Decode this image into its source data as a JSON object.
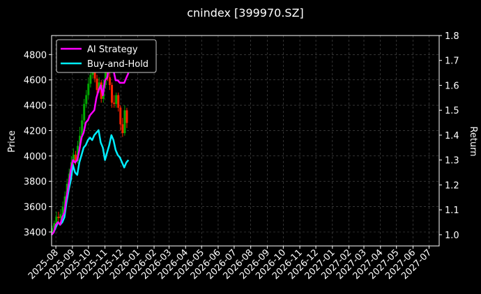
{
  "chart_data": {
    "type": "line",
    "title": "cnindex [399970.SZ]",
    "xlabel": "",
    "ylabel": "Price",
    "ylabel_right": "Return",
    "ylim": [
      3290,
      4950
    ],
    "ylim_right": [
      0.955,
      1.8
    ],
    "yticks": [
      "3400",
      "3600",
      "3800",
      "4000",
      "4200",
      "4400",
      "4600",
      "4800"
    ],
    "yticks_right": [
      "1.0",
      "1.1",
      "1.2",
      "1.3",
      "1.4",
      "1.5",
      "1.6",
      "1.7",
      "1.8"
    ],
    "xticks": [
      "2025-08",
      "2025-09",
      "2025-10",
      "2025-11",
      "2025-12",
      "2026-01",
      "2026-02",
      "2026-03",
      "2026-04",
      "2026-05",
      "2026-06",
      "2026-07",
      "2026-08",
      "2026-09",
      "2026-10",
      "2026-11",
      "2026-12",
      "2027-01",
      "2027-02",
      "2027-03",
      "2027-04",
      "2027-05",
      "2027-06",
      "2027-07"
    ],
    "grid": true,
    "legend_position": "top-left",
    "colors": {
      "background": "#000000",
      "ai_strategy": "#ff00ff",
      "buy_and_hold": "#00eeff",
      "up_candle": "#00aa00",
      "down_candle": "#ff2200",
      "grid": "#555555"
    },
    "series": [
      {
        "name": "AI Strategy",
        "axis": "right",
        "dates": [
          "2025-07-24",
          "2025-07-28",
          "2025-08-01",
          "2025-08-05",
          "2025-08-09",
          "2025-08-13",
          "2025-08-17",
          "2025-08-21",
          "2025-08-25",
          "2025-08-29",
          "2025-09-02",
          "2025-09-06",
          "2025-09-10",
          "2025-09-14",
          "2025-09-18",
          "2025-09-22",
          "2025-09-26",
          "2025-09-30",
          "2025-10-04",
          "2025-10-08",
          "2025-10-12",
          "2025-10-16",
          "2025-10-20",
          "2025-10-24",
          "2025-10-28",
          "2025-11-01",
          "2025-11-05",
          "2025-11-09",
          "2025-11-13",
          "2025-11-17",
          "2025-11-21",
          "2025-11-25",
          "2025-11-29",
          "2025-12-03",
          "2025-12-07",
          "2025-12-11",
          "2025-12-15"
        ],
        "values": [
          1.0,
          1.01,
          1.04,
          1.05,
          1.04,
          1.07,
          1.09,
          1.15,
          1.2,
          1.26,
          1.3,
          1.29,
          1.3,
          1.34,
          1.39,
          1.41,
          1.45,
          1.46,
          1.48,
          1.49,
          1.5,
          1.55,
          1.58,
          1.6,
          1.56,
          1.62,
          1.63,
          1.67,
          1.66,
          1.66,
          1.62,
          1.62,
          1.61,
          1.61,
          1.61,
          1.63,
          1.65
        ]
      },
      {
        "name": "Buy-and-Hold",
        "axis": "right",
        "dates": [
          "2025-07-24",
          "2025-07-28",
          "2025-08-01",
          "2025-08-05",
          "2025-08-09",
          "2025-08-13",
          "2025-08-17",
          "2025-08-21",
          "2025-08-25",
          "2025-08-29",
          "2025-09-02",
          "2025-09-06",
          "2025-09-10",
          "2025-09-14",
          "2025-09-18",
          "2025-09-22",
          "2025-09-26",
          "2025-09-30",
          "2025-10-04",
          "2025-10-08",
          "2025-10-12",
          "2025-10-16",
          "2025-10-20",
          "2025-10-24",
          "2025-10-28",
          "2025-11-01",
          "2025-11-05",
          "2025-11-09",
          "2025-11-13",
          "2025-11-17",
          "2025-11-21",
          "2025-11-25",
          "2025-11-29",
          "2025-12-03",
          "2025-12-07",
          "2025-12-11",
          "2025-12-15"
        ],
        "values": [
          1.0,
          1.01,
          1.03,
          1.05,
          1.04,
          1.05,
          1.07,
          1.13,
          1.18,
          1.22,
          1.28,
          1.25,
          1.24,
          1.29,
          1.32,
          1.35,
          1.36,
          1.38,
          1.39,
          1.38,
          1.4,
          1.41,
          1.42,
          1.37,
          1.35,
          1.3,
          1.33,
          1.36,
          1.4,
          1.38,
          1.34,
          1.32,
          1.31,
          1.29,
          1.27,
          1.29,
          1.3
        ]
      }
    ],
    "candles": {
      "name": "Price",
      "dates": [
        "2025-07-25",
        "2025-07-29",
        "2025-08-02",
        "2025-08-06",
        "2025-08-10",
        "2025-08-14",
        "2025-08-18",
        "2025-08-22",
        "2025-08-26",
        "2025-08-30",
        "2025-09-03",
        "2025-09-07",
        "2025-09-11",
        "2025-09-15",
        "2025-09-19",
        "2025-09-23",
        "2025-09-27",
        "2025-10-01",
        "2025-10-05",
        "2025-10-09",
        "2025-10-13",
        "2025-10-17",
        "2025-10-21",
        "2025-10-25",
        "2025-10-29",
        "2025-11-02",
        "2025-11-06",
        "2025-11-10",
        "2025-11-14",
        "2025-11-18",
        "2025-11-22",
        "2025-11-26",
        "2025-11-30",
        "2025-12-04",
        "2025-12-08",
        "2025-12-12"
      ],
      "open": [
        3400,
        3430,
        3470,
        3520,
        3510,
        3540,
        3600,
        3680,
        3780,
        3860,
        3950,
        4010,
        3960,
        4080,
        4160,
        4280,
        4410,
        4480,
        4570,
        4640,
        4700,
        4610,
        4520,
        4580,
        4450,
        4560,
        4700,
        4620,
        4560,
        4420,
        4410,
        4480,
        4380,
        4250,
        4180,
        4360
      ],
      "close": [
        3430,
        3470,
        3520,
        3510,
        3540,
        3600,
        3680,
        3780,
        3860,
        3950,
        4010,
        3960,
        4080,
        4160,
        4280,
        4410,
        4480,
        4570,
        4640,
        4700,
        4610,
        4520,
        4580,
        4450,
        4560,
        4700,
        4620,
        4560,
        4420,
        4410,
        4480,
        4380,
        4250,
        4180,
        4360,
        4260
      ],
      "high": [
        3450,
        3490,
        3560,
        3560,
        3580,
        3640,
        3720,
        3820,
        3900,
        4000,
        4060,
        4040,
        4120,
        4230,
        4330,
        4450,
        4520,
        4620,
        4700,
        4760,
        4720,
        4640,
        4620,
        4600,
        4600,
        4740,
        4720,
        4660,
        4580,
        4480,
        4500,
        4500,
        4400,
        4300,
        4400,
        4380
      ],
      "low": [
        3380,
        3410,
        3450,
        3480,
        3490,
        3520,
        3580,
        3660,
        3740,
        3830,
        3910,
        3930,
        3940,
        4050,
        4130,
        4250,
        4380,
        4450,
        4540,
        4610,
        4580,
        4490,
        4500,
        4420,
        4420,
        4530,
        4590,
        4520,
        4380,
        4380,
        4380,
        4350,
        4200,
        4150,
        4160,
        4220
      ]
    }
  }
}
